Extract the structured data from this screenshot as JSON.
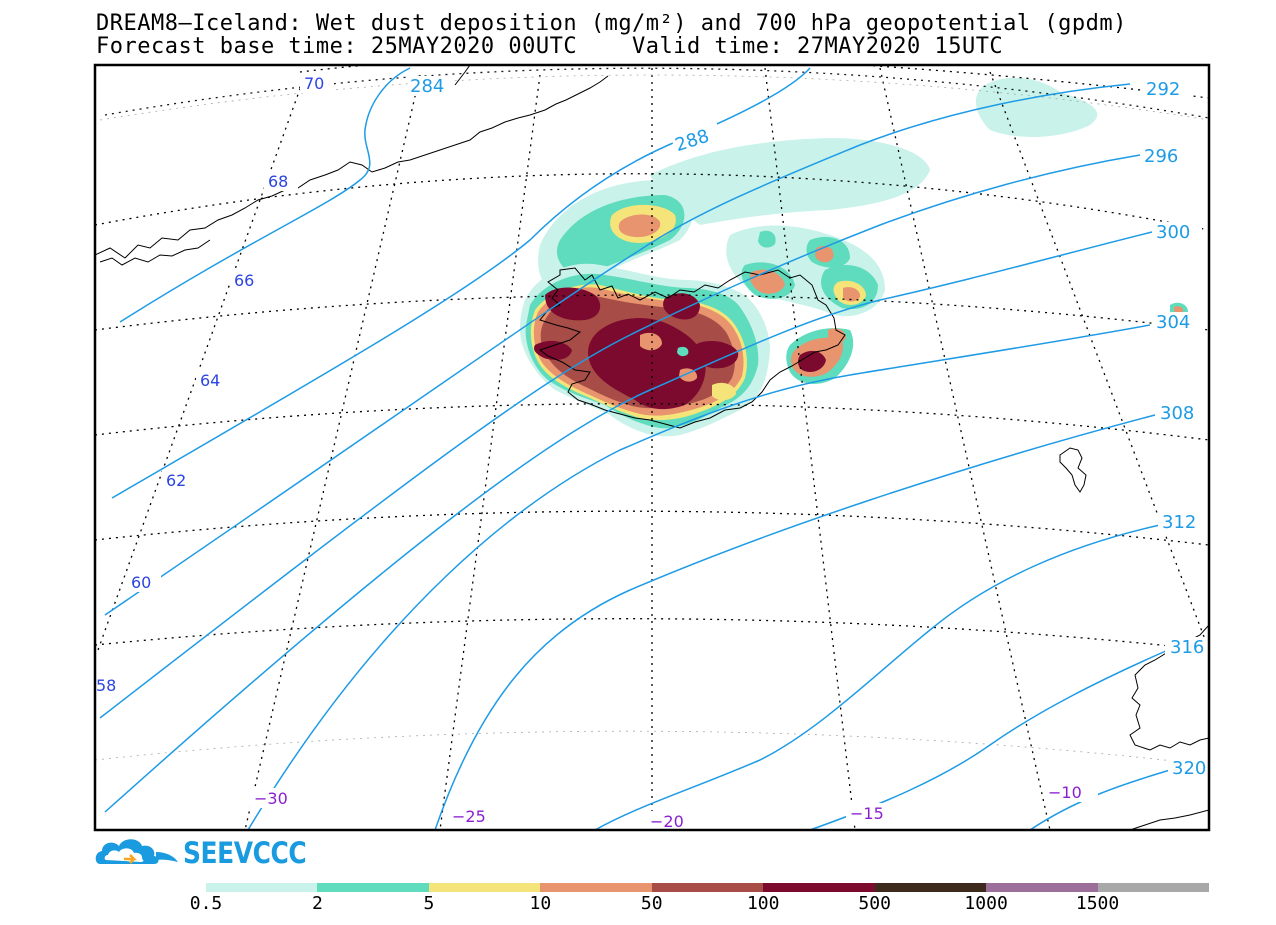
{
  "header": {
    "title_line1": "DREAM8—Iceland: Wet dust deposition (mg/m²) and 700 hPa geopotential (gpdm)",
    "title_line2": "Forecast base time: 25MAY2020 00UTC    Valid time: 27MAY2020 15UTC"
  },
  "map": {
    "region": "Iceland and surrounding North Atlantic",
    "field": "Wet dust deposition",
    "contour_field": "700 hPa geopotential",
    "contour_labels": [
      "284",
      "288",
      "292",
      "296",
      "300",
      "304",
      "308",
      "312",
      "316",
      "320"
    ],
    "latitude_labels": [
      "70",
      "68",
      "66",
      "64",
      "62",
      "60",
      "58"
    ],
    "longitude_labels": [
      "−30",
      "−25",
      "−20",
      "−15",
      "−10"
    ],
    "contour_color": "#1e9be6",
    "lat_label_color": "#2c45e0",
    "lon_label_color": "#8a1fd0"
  },
  "logo": {
    "text": "SEEVCCC"
  },
  "legend": {
    "thresholds": [
      "0.5",
      "2",
      "5",
      "10",
      "50",
      "100",
      "500",
      "1000",
      "1500"
    ],
    "colors": [
      "#c9f2ea",
      "#5fdcbd",
      "#f5e47a",
      "#e8946e",
      "#a84c48",
      "#7c0a2e",
      "#3e2a1c",
      "#9c6f9a",
      "#a8a8a8"
    ]
  }
}
